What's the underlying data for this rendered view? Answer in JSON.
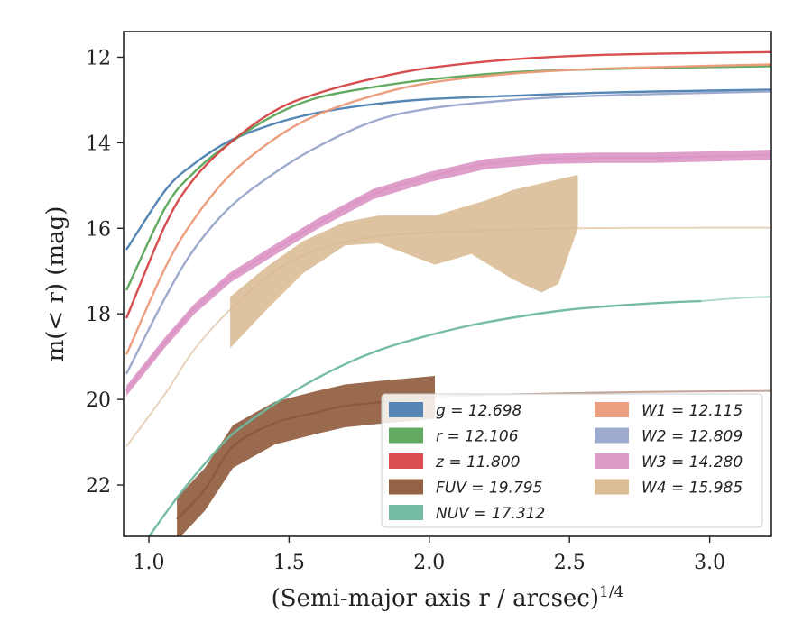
{
  "chart_data": {
    "type": "line",
    "xlabel": "(Semi-major axis r / arcsec)",
    "xlabel_sup": "1/4",
    "ylabel": "m(< r) (mag)",
    "xlim": [
      0.91,
      3.22
    ],
    "ylim": [
      23.2,
      11.4
    ],
    "y_inverted": true,
    "xticks": [
      1.0,
      1.5,
      2.0,
      2.5,
      3.0
    ],
    "xtick_labels": [
      "1.0",
      "1.5",
      "2.0",
      "2.5",
      "3.0"
    ],
    "yticks": [
      12,
      14,
      16,
      18,
      20,
      22
    ],
    "ytick_labels": [
      "12",
      "14",
      "16",
      "18",
      "20",
      "22"
    ],
    "grid": false,
    "legend_position": "lower-right",
    "series": [
      {
        "name": "g",
        "label": "g = 12.698",
        "color": "#4c7fb0",
        "x": [
          0.92,
          1.06,
          1.16,
          1.29,
          1.45,
          1.6,
          1.8,
          2.0,
          2.3,
          2.6,
          3.0,
          3.22
        ],
        "y": [
          16.5,
          15.1,
          14.5,
          13.95,
          13.55,
          13.3,
          13.1,
          12.98,
          12.9,
          12.83,
          12.78,
          12.76
        ],
        "band": 0.05
      },
      {
        "name": "r",
        "label": "r = 12.106",
        "color": "#5aa55a",
        "x": [
          0.92,
          1.06,
          1.16,
          1.29,
          1.45,
          1.6,
          1.8,
          2.0,
          2.3,
          2.6,
          3.0,
          3.22
        ],
        "y": [
          17.45,
          15.5,
          14.7,
          14.0,
          13.35,
          12.95,
          12.7,
          12.52,
          12.35,
          12.28,
          12.23,
          12.21
        ],
        "band": 0.05
      },
      {
        "name": "z",
        "label": "z = 11.800",
        "color": "#d64545",
        "x": [
          0.92,
          1.06,
          1.16,
          1.29,
          1.45,
          1.6,
          1.8,
          2.0,
          2.3,
          2.6,
          3.0,
          3.22
        ],
        "y": [
          18.1,
          15.9,
          14.85,
          14.0,
          13.25,
          12.85,
          12.5,
          12.25,
          12.05,
          11.95,
          11.9,
          11.88
        ],
        "band": 0.05
      },
      {
        "name": "FUV",
        "label": "FUV = 19.795",
        "color": "#8e5a3a",
        "x": [
          1.1,
          1.2,
          1.3,
          1.45,
          1.6,
          1.7,
          1.85,
          2.02
        ],
        "y": [
          22.8,
          22.1,
          21.1,
          20.55,
          20.3,
          20.15,
          20.05,
          19.95
        ],
        "band": 0.5,
        "extension": {
          "x": [
            1.9,
            2.3,
            2.8,
            3.22
          ],
          "y": [
            19.95,
            19.88,
            19.82,
            19.8
          ]
        }
      },
      {
        "name": "NUV",
        "label": "NUV = 17.312",
        "color": "#6fb8a0",
        "x": [
          0.99,
          1.1,
          1.2,
          1.3,
          1.45,
          1.6,
          1.8,
          2.0,
          2.2,
          2.5,
          2.8,
          2.97
        ],
        "y": [
          23.3,
          22.3,
          21.5,
          20.8,
          20.1,
          19.5,
          18.9,
          18.5,
          18.2,
          17.9,
          17.75,
          17.7
        ],
        "band": 0.08,
        "extension": {
          "x": [
            2.97,
            3.1,
            3.22
          ],
          "y": [
            17.7,
            17.63,
            17.6
          ]
        }
      },
      {
        "name": "W1",
        "label": "W1 = 12.115",
        "color": "#eb9a78",
        "x": [
          0.92,
          1.06,
          1.16,
          1.29,
          1.45,
          1.6,
          1.8,
          2.0,
          2.3,
          2.6,
          3.0,
          3.22
        ],
        "y": [
          18.95,
          16.9,
          15.8,
          14.75,
          13.9,
          13.35,
          12.9,
          12.6,
          12.38,
          12.27,
          12.2,
          12.17
        ],
        "band": 0.05
      },
      {
        "name": "W2",
        "label": "W2 = 12.809",
        "color": "#9aa6cb",
        "x": [
          0.92,
          1.06,
          1.16,
          1.29,
          1.45,
          1.6,
          1.8,
          2.0,
          2.3,
          2.6,
          3.0,
          3.22
        ],
        "y": [
          19.4,
          17.6,
          16.5,
          15.5,
          14.7,
          14.1,
          13.5,
          13.2,
          13.0,
          12.9,
          12.83,
          12.8
        ],
        "band": 0.05
      },
      {
        "name": "W3",
        "label": "W3 = 14.280",
        "color": "#dc95c5",
        "x": [
          0.92,
          1.06,
          1.16,
          1.29,
          1.45,
          1.6,
          1.8,
          2.0,
          2.2,
          2.4,
          2.6,
          2.8,
          3.0,
          3.12,
          3.22
        ],
        "y": [
          19.8,
          18.65,
          17.9,
          17.15,
          16.5,
          15.9,
          15.2,
          14.8,
          14.5,
          14.38,
          14.35,
          14.35,
          14.32,
          14.3,
          14.28
        ],
        "band": 0.12
      },
      {
        "name": "W4",
        "label": "W4 = 15.985",
        "color": "#d8b88f",
        "x": [
          0.92,
          1.06,
          1.16,
          1.29,
          1.45,
          1.6,
          1.8,
          2.0,
          2.2,
          2.5,
          2.8,
          3.22
        ],
        "y": [
          21.1,
          19.85,
          18.85,
          17.9,
          17.0,
          16.5,
          16.2,
          16.1,
          16.05,
          16.0,
          15.99,
          15.985
        ],
        "band": 0.0,
        "shade": {
          "upper_x": [
            1.29,
            1.42,
            1.55,
            1.7,
            1.82,
            2.02,
            2.2,
            2.3,
            2.53
          ],
          "upper_y": [
            17.6,
            16.9,
            16.3,
            15.85,
            15.7,
            15.7,
            15.35,
            15.1,
            14.75
          ],
          "lower_x": [
            1.29,
            1.42,
            1.55,
            1.7,
            1.82,
            2.02,
            2.15,
            2.3,
            2.4,
            2.46,
            2.53
          ],
          "lower_y": [
            18.8,
            17.9,
            17.05,
            16.4,
            16.35,
            16.85,
            16.6,
            17.2,
            17.5,
            17.3,
            16.0
          ]
        }
      }
    ]
  }
}
